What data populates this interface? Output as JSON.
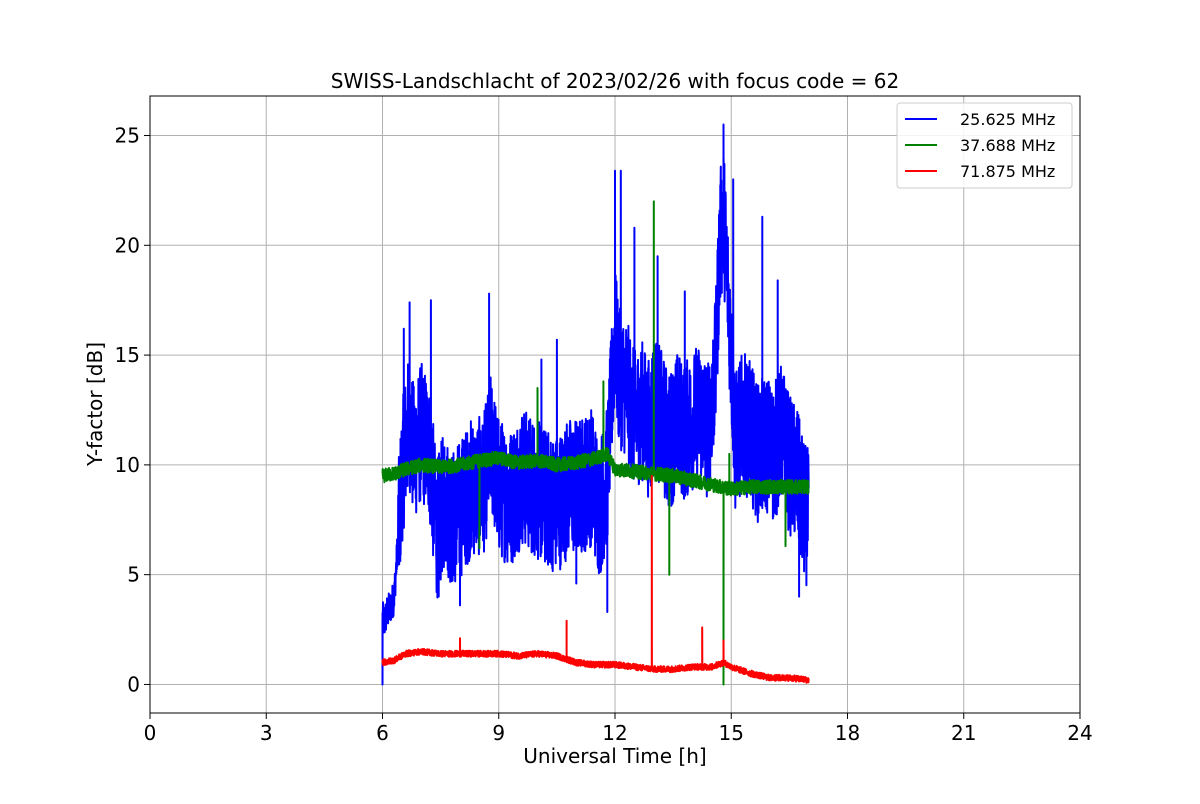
{
  "chart_data": {
    "type": "line",
    "title": "SWISS-Landschlacht of 2023/02/26 with focus code = 62",
    "xlabel": "Universal Time [h]",
    "ylabel": "Y-factor [dB]",
    "xlim": [
      0,
      24
    ],
    "ylim": [
      -1.3,
      26.8
    ],
    "xticks": [
      0,
      3,
      6,
      9,
      12,
      15,
      18,
      21,
      24
    ],
    "yticks": [
      0,
      5,
      10,
      15,
      20,
      25
    ],
    "grid": true,
    "legend_position": "top-right",
    "series": [
      {
        "name": "25.625 MHz",
        "color": "#0000ff",
        "x": [
          6.0,
          6.05,
          6.1,
          6.2,
          6.3,
          6.4,
          6.5,
          6.6,
          6.7,
          6.8,
          7.0,
          7.2,
          7.4,
          7.6,
          7.8,
          8.0,
          8.3,
          8.6,
          8.8,
          9.0,
          9.3,
          9.6,
          9.9,
          10.2,
          10.5,
          10.8,
          11.1,
          11.4,
          11.6,
          11.8,
          12.0,
          12.1,
          12.3,
          12.5,
          12.7,
          12.9,
          13.0,
          13.2,
          13.4,
          13.6,
          13.8,
          14.0,
          14.2,
          14.4,
          14.6,
          14.7,
          14.8,
          14.9,
          15.0,
          15.1,
          15.3,
          15.5,
          15.7,
          15.9,
          16.1,
          16.3,
          16.5,
          16.7,
          16.85,
          17.0
        ],
        "y": [
          3.0,
          2.8,
          3.2,
          3.5,
          4.0,
          6.5,
          9.5,
          11.0,
          12.0,
          10.5,
          11.5,
          10.8,
          7.0,
          8.5,
          7.5,
          8.0,
          9.0,
          9.0,
          11.0,
          9.0,
          8.5,
          9.5,
          9.0,
          8.5,
          8.2,
          9.0,
          9.0,
          9.5,
          8.0,
          9.5,
          16.0,
          14.0,
          13.5,
          12.0,
          12.5,
          11.5,
          13.0,
          12.0,
          11.0,
          12.0,
          11.5,
          12.0,
          12.5,
          11.5,
          14.5,
          20.0,
          21.5,
          18.5,
          15.0,
          11.0,
          12.0,
          11.5,
          10.5,
          11.0,
          10.5,
          11.5,
          10.0,
          9.5,
          8.0,
          7.5
        ],
        "peaks": [
          {
            "x": 6.0,
            "y": 0.0
          },
          {
            "x": 6.55,
            "y": 16.2
          },
          {
            "x": 6.7,
            "y": 17.4
          },
          {
            "x": 7.25,
            "y": 17.5
          },
          {
            "x": 7.45,
            "y": 4.0
          },
          {
            "x": 8.0,
            "y": 3.6
          },
          {
            "x": 8.75,
            "y": 17.8
          },
          {
            "x": 10.1,
            "y": 14.8
          },
          {
            "x": 10.5,
            "y": 15.7
          },
          {
            "x": 11.0,
            "y": 4.6
          },
          {
            "x": 11.8,
            "y": 3.3
          },
          {
            "x": 12.0,
            "y": 23.4
          },
          {
            "x": 12.15,
            "y": 23.4
          },
          {
            "x": 12.5,
            "y": 20.8
          },
          {
            "x": 13.1,
            "y": 19.5
          },
          {
            "x": 13.8,
            "y": 17.9
          },
          {
            "x": 14.8,
            "y": 25.5
          },
          {
            "x": 15.05,
            "y": 23.0
          },
          {
            "x": 15.8,
            "y": 21.3
          },
          {
            "x": 16.2,
            "y": 18.4
          },
          {
            "x": 16.75,
            "y": 4.0
          }
        ]
      },
      {
        "name": "37.688 MHz",
        "color": "#008000",
        "x": [
          6.0,
          6.3,
          6.6,
          7.0,
          7.5,
          8.0,
          8.5,
          9.0,
          9.5,
          10.0,
          10.5,
          11.0,
          11.5,
          11.8,
          12.0,
          12.5,
          13.0,
          13.5,
          14.0,
          14.5,
          15.0,
          15.5,
          16.0,
          16.5,
          17.0
        ],
        "y": [
          9.5,
          9.6,
          9.8,
          10.0,
          9.9,
          10.0,
          10.2,
          10.3,
          10.1,
          10.2,
          10.0,
          10.1,
          10.3,
          10.5,
          9.8,
          9.7,
          9.6,
          9.5,
          9.3,
          9.1,
          8.9,
          9.0,
          9.0,
          9.0,
          9.0
        ],
        "peaks": [
          {
            "x": 8.5,
            "y": 6.2
          },
          {
            "x": 10.0,
            "y": 13.5
          },
          {
            "x": 11.7,
            "y": 13.8
          },
          {
            "x": 13.0,
            "y": 22.0
          },
          {
            "x": 13.4,
            "y": 5.0
          },
          {
            "x": 14.8,
            "y": 0.0
          },
          {
            "x": 14.95,
            "y": 10.5
          },
          {
            "x": 16.4,
            "y": 6.3
          }
        ]
      },
      {
        "name": "71.875 MHz",
        "color": "#ff0000",
        "x": [
          6.0,
          6.3,
          6.6,
          7.0,
          7.5,
          8.0,
          8.5,
          9.0,
          9.5,
          10.0,
          10.5,
          11.0,
          11.5,
          12.0,
          12.5,
          13.0,
          13.5,
          14.0,
          14.5,
          14.8,
          15.0,
          15.5,
          16.0,
          16.5,
          17.0
        ],
        "y": [
          1.0,
          1.1,
          1.4,
          1.5,
          1.4,
          1.4,
          1.4,
          1.4,
          1.3,
          1.4,
          1.3,
          1.0,
          0.9,
          0.9,
          0.8,
          0.7,
          0.7,
          0.8,
          0.8,
          1.0,
          0.8,
          0.5,
          0.3,
          0.3,
          0.2
        ],
        "peaks": [
          {
            "x": 8.0,
            "y": 2.1
          },
          {
            "x": 10.75,
            "y": 2.9
          },
          {
            "x": 12.95,
            "y": 9.5
          },
          {
            "x": 14.25,
            "y": 2.6
          },
          {
            "x": 14.8,
            "y": 2.0
          }
        ]
      }
    ]
  }
}
